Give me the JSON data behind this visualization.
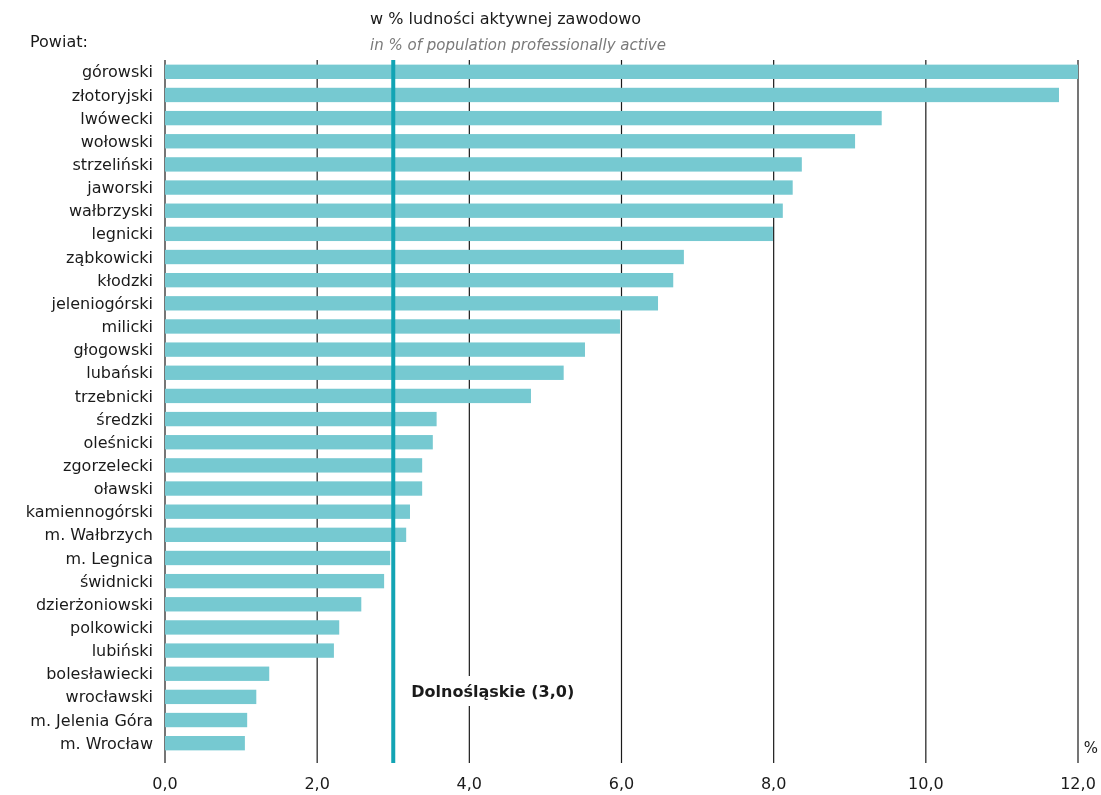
{
  "chart_data": {
    "type": "bar",
    "orientation": "horizontal",
    "title": "w % ludności aktywnej zawodowo",
    "subtitle": "in % of population professionally active",
    "ylabel": "Powiat:",
    "xlabel": "%",
    "categories": [
      "górowski",
      "złotoryjski",
      "lwówecki",
      "wołowski",
      "strzeliński",
      "jaworski",
      "wałbrzyski",
      "legnicki",
      "ząbkowicki",
      "kłodzki",
      "jeleniogórski",
      "milicki",
      "głogowski",
      "lubański",
      "trzebnicki",
      "średzki",
      "oleśnicki",
      "zgorzelecki",
      "oławski",
      "kamiennogórski",
      "m. Wałbrzych",
      "m. Legnica",
      "świdnicki",
      "dzierżoniowski",
      "polkowicki",
      "lubiński",
      "bolesławiecki",
      "wrocławski",
      "m. Jelenia Góra",
      "m. Wrocław"
    ],
    "values": [
      12.0,
      11.75,
      9.42,
      9.07,
      8.37,
      8.25,
      8.12,
      7.99,
      6.82,
      6.68,
      6.48,
      5.98,
      5.52,
      5.24,
      4.81,
      3.57,
      3.52,
      3.38,
      3.38,
      3.22,
      3.17,
      2.96,
      2.88,
      2.58,
      2.29,
      2.22,
      1.37,
      1.2,
      1.08,
      1.05
    ],
    "color": "#76c9d1",
    "xlim": [
      0,
      12
    ],
    "xticks": [
      {
        "value": 0,
        "label": "0,0"
      },
      {
        "value": 2,
        "label": "2,0"
      },
      {
        "value": 4,
        "label": "4,0"
      },
      {
        "value": 6,
        "label": "6,0"
      },
      {
        "value": 8,
        "label": "8,0"
      },
      {
        "value": 10,
        "label": "10,0"
      },
      {
        "value": 12,
        "label": "12,0"
      }
    ],
    "grid": "x",
    "ref_lines": [
      {
        "axis": "x",
        "value": 3.0,
        "label": "Dolnośląskie (3,0)",
        "color": "#12a4b4"
      }
    ]
  }
}
